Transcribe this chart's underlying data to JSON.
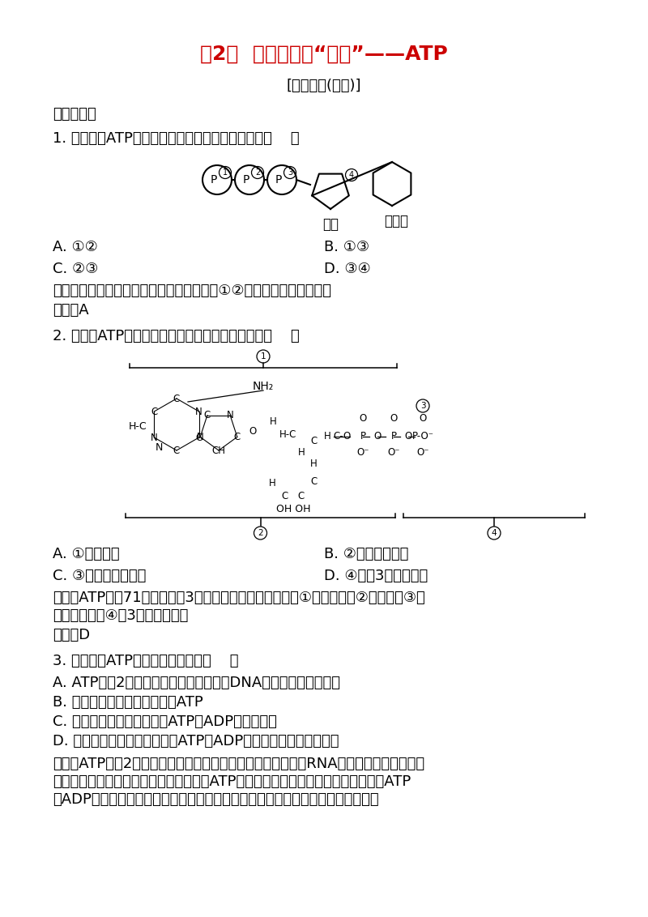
{
  "title": "第2节  细胞的能量“通货”——ATP",
  "subtitle": "[课时作业(十四)]",
  "section1": "一、选择题",
  "q1": "1. 下图表示ATP的结构，其中表示高能磷酸键的是（    ）",
  "q1_optA": "A. ①②",
  "q1_optB": "B. ①③",
  "q1_optC": "C. ②③",
  "q1_optD": "D. ③④",
  "q1_analysis": "解析：高能磷酸键位于磷酸基团之间，图中①②位置表示高能磷酸键。",
  "q1_answer": "答案：A",
  "q2": "2. 下面对ATP结构简式中标号的识别中，正确的是（    ）",
  "q2_optA": "A. ①代表腺苷",
  "q2_optB": "B. ②代表脱氧核糖",
  "q2_optC": "C. ③代表普通磷酸键",
  "q2_optD": "D. ④代表3个磷酸基团",
  "q2_analysis1": "解析：ATP是甔71分子腺苷和3分子磷酸基团构成的，其中①为腺嘴呐，②为核糖，③为",
  "q2_analysis2": "高能磷酸键，④为3个磷酸基团。",
  "q2_answer": "答案：D",
  "q3": "3. 下列关于ATP的叙述，正确的是（    ）",
  "q3_optA": "A. ATP脱去2分子磷酸的剩余部分是构成DNA分子的基本单位之一",
  "q3_optB": "B. 绿色植物只在叶绿体中产生ATP",
  "q3_optC": "C. 大脑在思考问题时，伴随ATP与ADP的相互转化",
  "q3_optD": "D. 长期不进食的病人，细胞中ATP与ADP的含量难以达到动态平衡",
  "q3_analysis1": "解析：ATP脱去2分子磷酸的剩余部分是腺嘴呐核糖核苷酸，是RNA的基本组成单位之一；",
  "q3_analysis2": "绿色植物可通过光合作用和呼吸作用产生ATP；大脑思考问题需消耗能量；当细胞中ATP",
  "q3_analysis3": "和ADP含量不能达到动态平衡时就是死亡之时，病人可以通过输液获得营养物质。",
  "bg_color": "#ffffff",
  "title_color": "#cc0000",
  "text_color": "#000000"
}
